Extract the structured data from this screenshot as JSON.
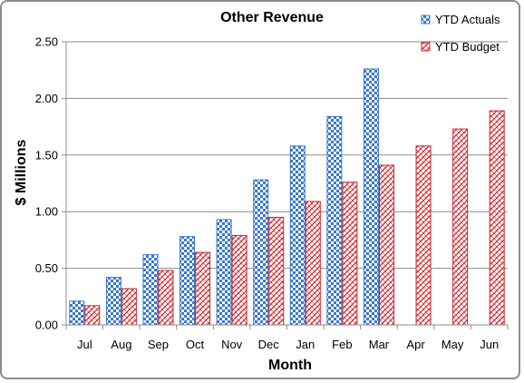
{
  "chart_data": {
    "type": "bar",
    "title": "Other Revenue",
    "xlabel": "Month",
    "ylabel": "$ Millions",
    "categories": [
      "Jul",
      "Aug",
      "Sep",
      "Oct",
      "Nov",
      "Dec",
      "Jan",
      "Feb",
      "Mar",
      "Apr",
      "May",
      "Jun"
    ],
    "series": [
      {
        "name": "YTD Actuals",
        "values": [
          0.21,
          0.42,
          0.62,
          0.78,
          0.93,
          1.28,
          1.58,
          1.84,
          2.26,
          null,
          null,
          null
        ],
        "color": "#3a78c9",
        "pattern": "checkerboard"
      },
      {
        "name": "YTD Budget",
        "values": [
          0.17,
          0.32,
          0.48,
          0.64,
          0.79,
          0.95,
          1.09,
          1.26,
          1.41,
          1.58,
          1.73,
          1.89
        ],
        "color": "#c9252c",
        "pattern": "crosshatch"
      }
    ],
    "ylim": [
      0,
      2.5
    ],
    "yticks": [
      "0.00",
      "0.50",
      "1.00",
      "1.50",
      "2.00",
      "2.50"
    ],
    "grid": "horizontal",
    "legend_position": "top-right"
  }
}
